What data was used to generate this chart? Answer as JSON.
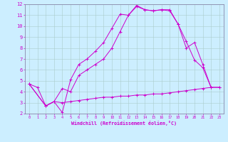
{
  "xlabel": "Windchill (Refroidissement éolien,°C)",
  "background_color": "#cceeff",
  "line_color": "#cc00cc",
  "grid_color": "#aacccc",
  "spine_color": "#8888aa",
  "xlim": [
    -0.5,
    23.5
  ],
  "ylim": [
    2,
    12
  ],
  "xticks": [
    0,
    1,
    2,
    3,
    4,
    5,
    6,
    7,
    8,
    9,
    10,
    11,
    12,
    13,
    14,
    15,
    16,
    17,
    18,
    19,
    20,
    21,
    22,
    23
  ],
  "yticks": [
    2,
    3,
    4,
    5,
    6,
    7,
    8,
    9,
    10,
    11,
    12
  ],
  "line1_x": [
    0,
    1,
    2,
    3,
    4,
    5,
    6,
    7,
    8,
    9,
    10,
    11,
    12,
    13,
    14,
    15,
    16,
    17,
    18,
    19,
    20,
    21,
    22
  ],
  "line1_y": [
    4.7,
    4.4,
    2.7,
    3.1,
    2.1,
    5.1,
    6.5,
    7.0,
    7.7,
    8.5,
    9.8,
    11.1,
    11.0,
    11.9,
    11.5,
    11.4,
    11.5,
    11.5,
    10.2,
    8.6,
    6.9,
    6.2,
    4.4
  ],
  "line2_x": [
    0,
    2,
    3,
    4,
    5,
    6,
    7,
    8,
    9,
    10,
    11,
    12,
    13,
    14,
    15,
    16,
    17,
    18,
    19,
    20,
    21,
    22,
    23
  ],
  "line2_y": [
    4.7,
    2.7,
    3.1,
    4.3,
    4.0,
    5.5,
    6.0,
    6.5,
    7.0,
    8.0,
    9.5,
    11.0,
    11.8,
    11.5,
    11.4,
    11.5,
    11.4,
    10.2,
    8.0,
    8.5,
    6.5,
    4.4,
    4.4
  ],
  "line3_x": [
    0,
    2,
    3,
    4,
    5,
    6,
    7,
    8,
    9,
    10,
    11,
    12,
    13,
    14,
    15,
    16,
    17,
    18,
    19,
    20,
    21,
    22,
    23
  ],
  "line3_y": [
    4.7,
    2.7,
    3.1,
    3.0,
    3.1,
    3.2,
    3.3,
    3.4,
    3.5,
    3.5,
    3.6,
    3.6,
    3.7,
    3.7,
    3.8,
    3.8,
    3.9,
    4.0,
    4.1,
    4.2,
    4.3,
    4.4,
    4.4
  ]
}
